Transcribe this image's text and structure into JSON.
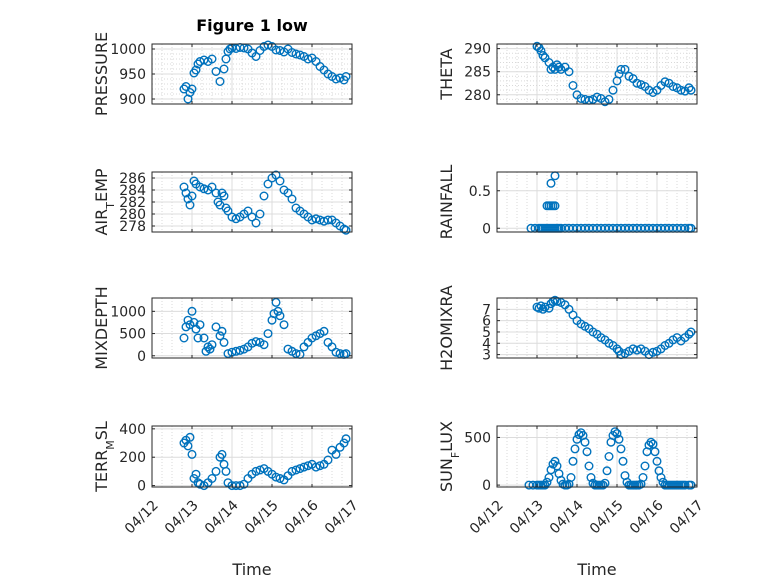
{
  "figure": {
    "title": "Figure 1 low",
    "marker_color": "#0072BD"
  },
  "chart_data": [
    {
      "type": "scatter",
      "title": "Figure 1 low",
      "ylabel": "PRESSURE",
      "ylabel_sub": "",
      "ylabel_tail": "",
      "xlabel": "",
      "ylim": [
        890,
        1010
      ],
      "yticks": [
        900,
        950,
        1000
      ],
      "yminor": true,
      "xlim": [
        0,
        5
      ],
      "xticks": [
        0,
        1,
        2,
        3,
        4,
        5
      ],
      "xticklabels": [],
      "xminor": true,
      "x": [
        0.8,
        0.85,
        0.9,
        0.95,
        1.0,
        1.05,
        1.1,
        1.15,
        1.2,
        1.3,
        1.4,
        1.5,
        1.6,
        1.7,
        1.8,
        1.85,
        1.9,
        1.95,
        2.0,
        2.1,
        2.2,
        2.3,
        2.4,
        2.5,
        2.6,
        2.7,
        2.8,
        2.9,
        3.0,
        3.1,
        3.2,
        3.3,
        3.4,
        3.5,
        3.6,
        3.7,
        3.8,
        3.9,
        4.0,
        4.1,
        4.2,
        4.3,
        4.4,
        4.5,
        4.6,
        4.7,
        4.8,
        4.85
      ],
      "y": [
        920,
        925,
        900,
        913,
        920,
        952,
        958,
        970,
        975,
        978,
        975,
        980,
        955,
        935,
        960,
        980,
        995,
        1000,
        1002,
        1001,
        1003,
        1002,
        1000,
        992,
        985,
        997,
        1005,
        1008,
        1005,
        998,
        997,
        994,
        1000,
        993,
        990,
        988,
        985,
        980,
        982,
        975,
        965,
        958,
        950,
        945,
        940,
        942,
        938,
        945
      ]
    },
    {
      "type": "scatter",
      "title": "",
      "ylabel": "THETA",
      "ylabel_sub": "",
      "ylabel_tail": "",
      "xlabel": "",
      "ylim": [
        278,
        291
      ],
      "yticks": [
        280,
        285,
        290
      ],
      "yminor": true,
      "xlim": [
        0,
        5
      ],
      "xticks": [
        0,
        1,
        2,
        3,
        4,
        5
      ],
      "xticklabels": [],
      "xminor": true,
      "x": [
        1.0,
        1.05,
        1.1,
        1.15,
        1.2,
        1.3,
        1.35,
        1.4,
        1.45,
        1.5,
        1.55,
        1.6,
        1.7,
        1.8,
        1.9,
        2.0,
        2.1,
        2.2,
        2.3,
        2.4,
        2.5,
        2.6,
        2.7,
        2.8,
        2.9,
        3.0,
        3.05,
        3.1,
        3.2,
        3.3,
        3.4,
        3.5,
        3.6,
        3.7,
        3.8,
        3.9,
        4.0,
        4.1,
        4.2,
        4.3,
        4.4,
        4.5,
        4.6,
        4.7,
        4.8,
        4.85
      ],
      "y": [
        290.5,
        290.2,
        289.5,
        288.5,
        288,
        287,
        285.5,
        286,
        285.5,
        286.5,
        286,
        285.5,
        286,
        285,
        282,
        280,
        279.2,
        279,
        278.8,
        279,
        279.5,
        279.2,
        278.5,
        279,
        281,
        283,
        284.5,
        285.5,
        285.5,
        284,
        283.5,
        282.5,
        282.2,
        281.8,
        281,
        280.5,
        281,
        282,
        282.8,
        282.5,
        281.8,
        281.5,
        281,
        280.8,
        281.5,
        281
      ]
    },
    {
      "type": "scatter",
      "title": "",
      "ylabel": "AIR",
      "ylabel_sub": "T",
      "ylabel_tail": "EMP",
      "xlabel": "",
      "ylim": [
        277,
        287
      ],
      "yticks": [
        278,
        280,
        282,
        284,
        286
      ],
      "yminor": false,
      "xlim": [
        0,
        5
      ],
      "xticks": [
        0,
        1,
        2,
        3,
        4,
        5
      ],
      "xticklabels": [],
      "xminor": true,
      "x": [
        0.8,
        0.85,
        0.9,
        0.95,
        1.0,
        1.05,
        1.1,
        1.2,
        1.3,
        1.4,
        1.5,
        1.6,
        1.65,
        1.7,
        1.75,
        1.8,
        1.85,
        1.9,
        2.0,
        2.1,
        2.2,
        2.3,
        2.4,
        2.5,
        2.6,
        2.7,
        2.8,
        2.9,
        3.0,
        3.1,
        3.2,
        3.3,
        3.4,
        3.5,
        3.6,
        3.7,
        3.8,
        3.9,
        4.0,
        4.1,
        4.2,
        4.3,
        4.4,
        4.5,
        4.6,
        4.7,
        4.8,
        4.85
      ],
      "y": [
        284.5,
        283.5,
        282.5,
        281.5,
        283,
        285.5,
        285,
        284.5,
        284.2,
        284,
        284.5,
        283.5,
        282,
        281.5,
        283.5,
        283,
        281,
        280.5,
        279.5,
        279.2,
        279.5,
        280,
        280.5,
        279.5,
        278.5,
        280,
        283,
        285,
        286,
        286.5,
        285.5,
        284,
        283.5,
        282.5,
        281,
        280.5,
        280,
        279.5,
        279,
        279.2,
        279,
        278.8,
        279,
        279,
        278.5,
        278,
        277.5,
        277.3
      ]
    },
    {
      "type": "scatter",
      "title": "",
      "ylabel": "RAINFALL",
      "ylabel_sub": "",
      "ylabel_tail": "",
      "xlabel": "",
      "ylim": [
        -0.05,
        0.75
      ],
      "yticks": [
        0,
        0.5
      ],
      "yminor": false,
      "xlim": [
        0,
        5
      ],
      "xticks": [
        0,
        1,
        2,
        3,
        4,
        5
      ],
      "xticklabels": [],
      "xminor": true,
      "x": [
        0.85,
        0.95,
        1.05,
        1.1,
        1.15,
        1.2,
        1.25,
        1.3,
        1.35,
        1.4,
        1.45,
        1.5,
        1.55,
        1.6,
        1.7,
        1.8,
        1.9,
        2.0,
        2.1,
        2.2,
        2.3,
        2.4,
        2.5,
        2.6,
        2.7,
        2.8,
        2.9,
        3.0,
        3.1,
        3.2,
        3.3,
        3.4,
        3.5,
        3.6,
        3.7,
        3.8,
        3.9,
        4.0,
        4.1,
        4.2,
        4.3,
        4.4,
        4.5,
        4.6,
        4.7,
        4.8,
        4.85,
        1.25,
        1.3,
        1.35,
        1.4,
        1.45,
        1.35,
        1.45
      ],
      "y": [
        0,
        0,
        0,
        0,
        0,
        0,
        0,
        0,
        0,
        0,
        0,
        0,
        0,
        0,
        0,
        0,
        0,
        0,
        0,
        0,
        0,
        0,
        0,
        0,
        0,
        0,
        0,
        0,
        0,
        0,
        0,
        0,
        0,
        0,
        0,
        0,
        0,
        0,
        0,
        0,
        0,
        0,
        0,
        0,
        0,
        0,
        0,
        0.3,
        0.3,
        0.3,
        0.3,
        0.3,
        0.6,
        0.7
      ]
    },
    {
      "type": "scatter",
      "title": "",
      "ylabel": "MIXDEPTH",
      "ylabel_sub": "",
      "ylabel_tail": "",
      "xlabel": "",
      "ylim": [
        -50,
        1300
      ],
      "yticks": [
        0,
        500,
        1000
      ],
      "yminor": false,
      "xlim": [
        0,
        5
      ],
      "xticks": [
        0,
        1,
        2,
        3,
        4,
        5
      ],
      "xticklabels": [],
      "xminor": true,
      "x": [
        0.8,
        0.85,
        0.9,
        0.95,
        1.0,
        1.05,
        1.1,
        1.15,
        1.2,
        1.3,
        1.35,
        1.4,
        1.45,
        1.5,
        1.6,
        1.7,
        1.75,
        1.8,
        1.9,
        2.0,
        2.1,
        2.2,
        2.3,
        2.4,
        2.5,
        2.6,
        2.7,
        2.8,
        2.9,
        3.0,
        3.05,
        3.1,
        3.15,
        3.2,
        3.3,
        3.4,
        3.5,
        3.6,
        3.7,
        3.8,
        3.9,
        4.0,
        4.1,
        4.2,
        4.3,
        4.4,
        4.5,
        4.6,
        4.7,
        4.8,
        4.85
      ],
      "y": [
        400,
        650,
        800,
        700,
        1000,
        750,
        600,
        400,
        700,
        400,
        100,
        200,
        150,
        250,
        650,
        450,
        550,
        300,
        50,
        80,
        100,
        120,
        150,
        200,
        280,
        320,
        300,
        250,
        500,
        800,
        950,
        1200,
        1000,
        900,
        700,
        150,
        100,
        50,
        30,
        200,
        300,
        400,
        450,
        500,
        550,
        300,
        200,
        80,
        50,
        30,
        50
      ]
    },
    {
      "type": "scatter",
      "title": "",
      "ylabel": "H2OMIXRA",
      "ylabel_sub": "",
      "ylabel_tail": "",
      "xlabel": "",
      "ylim": [
        2.7,
        8
      ],
      "yticks": [
        3,
        4,
        5,
        6,
        7
      ],
      "yminor": false,
      "xlim": [
        0,
        5
      ],
      "xticks": [
        0,
        1,
        2,
        3,
        4,
        5
      ],
      "xticklabels": [],
      "xminor": true,
      "x": [
        1.0,
        1.05,
        1.1,
        1.15,
        1.2,
        1.3,
        1.35,
        1.4,
        1.45,
        1.5,
        1.6,
        1.7,
        1.8,
        1.9,
        2.0,
        2.1,
        2.2,
        2.3,
        2.4,
        2.5,
        2.6,
        2.7,
        2.8,
        2.9,
        3.0,
        3.05,
        3.1,
        3.2,
        3.3,
        3.4,
        3.5,
        3.6,
        3.7,
        3.8,
        3.9,
        4.0,
        4.1,
        4.2,
        4.3,
        4.4,
        4.5,
        4.6,
        4.7,
        4.8,
        4.85
      ],
      "y": [
        7.2,
        7.1,
        7.3,
        7.0,
        7.2,
        7.1,
        7.5,
        7.7,
        7.8,
        7.7,
        7.6,
        7.4,
        7.0,
        6.5,
        6.0,
        5.7,
        5.5,
        5.3,
        5.0,
        4.8,
        4.5,
        4.3,
        4.0,
        3.8,
        3.5,
        3.3,
        3.0,
        3.1,
        3.3,
        3.5,
        3.4,
        3.5,
        3.3,
        3.0,
        3.2,
        3.3,
        3.5,
        3.8,
        4.0,
        4.3,
        4.5,
        4.2,
        4.5,
        4.8,
        5.0
      ]
    },
    {
      "type": "scatter",
      "title": "",
      "ylabel": "TERR",
      "ylabel_sub": "M",
      "ylabel_tail": "SL",
      "xlabel": "Time",
      "ylim": [
        -10,
        420
      ],
      "yticks": [
        0,
        200,
        400
      ],
      "yminor": false,
      "xlim": [
        0,
        5
      ],
      "xticks": [
        0,
        1,
        2,
        3,
        4,
        5
      ],
      "xticklabels": [
        "04/12",
        "04/13",
        "04/14",
        "04/15",
        "04/16",
        "04/17"
      ],
      "xminor": true,
      "x": [
        0.8,
        0.85,
        0.9,
        0.95,
        1.0,
        1.05,
        1.1,
        1.15,
        1.2,
        1.3,
        1.4,
        1.5,
        1.6,
        1.7,
        1.75,
        1.8,
        1.85,
        1.9,
        2.0,
        2.1,
        2.2,
        2.3,
        2.4,
        2.5,
        2.6,
        2.7,
        2.8,
        2.9,
        3.0,
        3.1,
        3.2,
        3.3,
        3.4,
        3.5,
        3.6,
        3.7,
        3.8,
        3.9,
        4.0,
        4.1,
        4.2,
        4.3,
        4.4,
        4.5,
        4.6,
        4.7,
        4.8,
        4.85
      ],
      "y": [
        300,
        320,
        280,
        340,
        220,
        50,
        80,
        20,
        10,
        0,
        20,
        50,
        100,
        200,
        220,
        150,
        100,
        20,
        0,
        0,
        0,
        10,
        50,
        80,
        100,
        110,
        120,
        100,
        80,
        60,
        50,
        40,
        70,
        100,
        110,
        120,
        130,
        140,
        150,
        130,
        140,
        150,
        180,
        250,
        220,
        270,
        300,
        330
      ]
    },
    {
      "type": "scatter",
      "title": "",
      "ylabel": "SUN",
      "ylabel_sub": "F",
      "ylabel_tail": "LUX",
      "xlabel": "Time",
      "ylim": [
        -20,
        620
      ],
      "yticks": [
        0,
        500
      ],
      "yminor": false,
      "xlim": [
        0,
        5
      ],
      "xticks": [
        0,
        1,
        2,
        3,
        4,
        5
      ],
      "xticklabels": [
        "04/12",
        "04/13",
        "04/14",
        "04/15",
        "04/16",
        "04/17"
      ],
      "xminor": true,
      "x": [
        0.8,
        0.9,
        1.0,
        1.05,
        1.1,
        1.15,
        1.2,
        1.25,
        1.3,
        1.35,
        1.4,
        1.45,
        1.5,
        1.55,
        1.6,
        1.65,
        1.7,
        1.75,
        1.8,
        1.85,
        1.9,
        1.95,
        2.0,
        2.05,
        2.1,
        2.15,
        2.2,
        2.25,
        2.3,
        2.35,
        2.4,
        2.45,
        2.5,
        2.55,
        2.6,
        2.65,
        2.7,
        2.75,
        2.8,
        2.85,
        2.9,
        2.95,
        3.0,
        3.05,
        3.1,
        3.15,
        3.2,
        3.25,
        3.3,
        3.35,
        3.4,
        3.45,
        3.5,
        3.55,
        3.6,
        3.65,
        3.7,
        3.75,
        3.8,
        3.85,
        3.9,
        3.95,
        4.0,
        4.05,
        4.1,
        4.15,
        4.2,
        4.25,
        4.3,
        4.35,
        4.4,
        4.45,
        4.5,
        4.55,
        4.6,
        4.65,
        4.7,
        4.8,
        4.85
      ],
      "y": [
        0,
        0,
        0,
        0,
        0,
        0,
        0,
        30,
        80,
        160,
        220,
        250,
        200,
        120,
        50,
        10,
        0,
        0,
        10,
        80,
        250,
        380,
        480,
        530,
        550,
        520,
        450,
        350,
        200,
        80,
        20,
        0,
        0,
        0,
        0,
        0,
        20,
        150,
        300,
        450,
        520,
        560,
        540,
        480,
        380,
        250,
        100,
        30,
        0,
        0,
        0,
        0,
        0,
        0,
        10,
        80,
        200,
        350,
        420,
        450,
        430,
        350,
        250,
        150,
        80,
        30,
        0,
        0,
        0,
        0,
        0,
        0,
        0,
        0,
        0,
        0,
        0,
        0,
        0
      ]
    }
  ]
}
